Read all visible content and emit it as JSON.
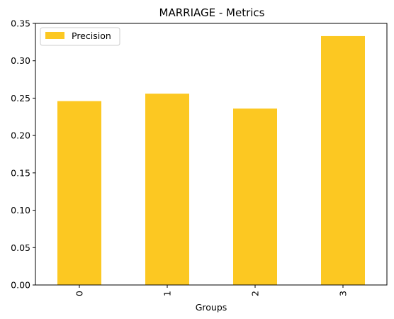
{
  "chart_data": {
    "type": "bar",
    "title": "MARRIAGE - Metrics",
    "xlabel": "Groups",
    "ylabel": "",
    "categories": [
      "0",
      "1",
      "2",
      "3"
    ],
    "series": [
      {
        "name": "Precision",
        "values": [
          0.246,
          0.256,
          0.236,
          0.333
        ],
        "color": "#fcc822"
      }
    ],
    "ylim": [
      0,
      0.35
    ],
    "yticks": [
      "0.00",
      "0.05",
      "0.10",
      "0.15",
      "0.20",
      "0.25",
      "0.30",
      "0.35"
    ],
    "grid": false,
    "legend_position": "top-left",
    "x_tick_rotation": "vertical"
  }
}
